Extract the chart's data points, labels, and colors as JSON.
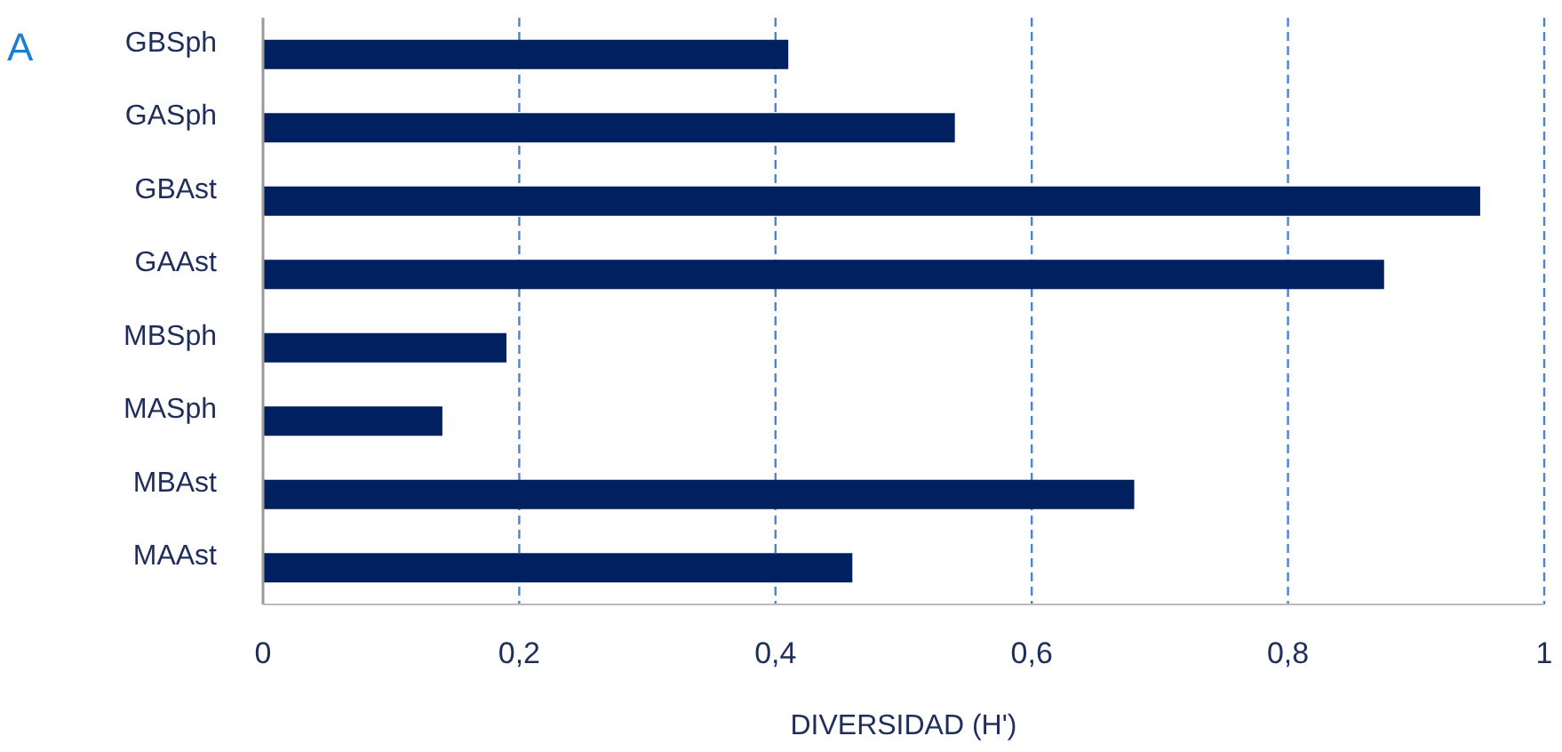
{
  "chart_data": {
    "type": "bar",
    "orientation": "horizontal",
    "xlabel": "DIVERSIDAD (H')",
    "annotations": [
      "A"
    ],
    "categories": [
      "GBSph",
      "GASph",
      "GBAst",
      "GAAst",
      "MBSph",
      "MASph",
      "MBAst",
      "MAAst"
    ],
    "values": [
      0.41,
      0.54,
      0.95,
      0.875,
      0.19,
      0.14,
      0.68,
      0.46
    ],
    "color": "#002060",
    "xlim": [
      0,
      1
    ],
    "xticks": [
      0,
      {
        "value": 0.2,
        "label": "0,2"
      },
      {
        "value": 0.4,
        "label": "0,4"
      },
      {
        "value": 0.6,
        "label": "0,6"
      },
      {
        "value": 0.8,
        "label": "0,8"
      },
      1
    ],
    "grid": "x",
    "line_style": "dashed"
  }
}
